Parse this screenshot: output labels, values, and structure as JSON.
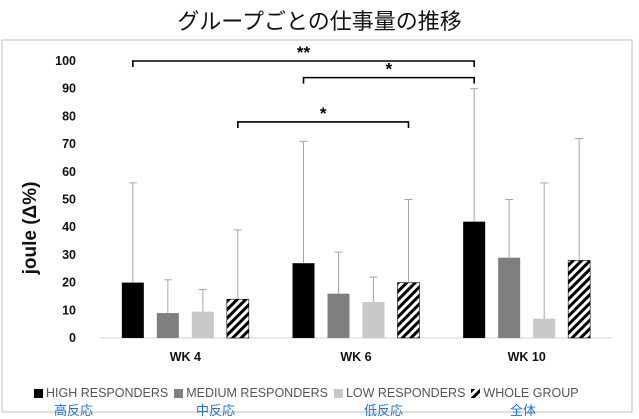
{
  "title": "グループごとの仕事量の推移",
  "chart_data": {
    "type": "bar",
    "ylabel": "joule (Δ%)",
    "ylim": [
      0,
      100
    ],
    "yticks": [
      0,
      10,
      20,
      30,
      40,
      50,
      60,
      70,
      80,
      90,
      100
    ],
    "categories": [
      "WK 4",
      "WK 6",
      "WK 10"
    ],
    "series": [
      {
        "name": "HIGH RESPONDERS",
        "values": [
          20,
          27,
          42
        ],
        "errors": [
          36,
          44,
          48
        ],
        "color": "#000000"
      },
      {
        "name": "MEDIUM RESPONDERS",
        "values": [
          9,
          16,
          29
        ],
        "errors": [
          12,
          15,
          21
        ],
        "color": "#7f7f7f"
      },
      {
        "name": "LOW RESPONDERS",
        "values": [
          9.5,
          13,
          7
        ],
        "errors": [
          8,
          9,
          49
        ],
        "color": "#c8c8c8"
      },
      {
        "name": "WHOLE GROUP",
        "values": [
          14,
          20,
          28
        ],
        "errors": [
          25,
          30,
          44
        ],
        "color": "hatch"
      }
    ],
    "significance": [
      {
        "label": "**",
        "from": "WK 4 HIGH RESPONDERS",
        "to": "WK 10 HIGH RESPONDERS",
        "y": 100
      },
      {
        "label": "*",
        "from": "WK 6 HIGH RESPONDERS",
        "to": "WK 10 HIGH RESPONDERS",
        "y": 94
      },
      {
        "label": "*",
        "from": "WK 4 WHOLE GROUP",
        "to": "WK 6 WHOLE GROUP",
        "y": 78
      }
    ],
    "legend_position": "bottom"
  },
  "legend_jp": [
    "高反応",
    "中反応",
    "低反応",
    "全体"
  ]
}
